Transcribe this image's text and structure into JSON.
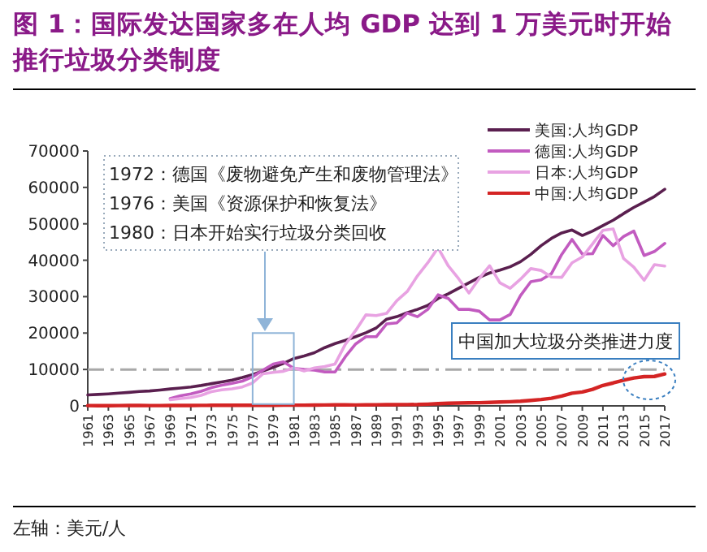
{
  "chart_data": {
    "type": "line",
    "title": "图 1：国际发达国家多在人均 GDP 达到 1 万美元时开始推行垃圾分类制度",
    "annotations": [
      "1972：德国《废物避免产生和废物管理法》",
      "1976：美国《资源保护和恢复法》",
      "1980：日本开始实行垃圾分类回收",
      "中国加大垃圾分类推进力度",
      "左轴：美元/人"
    ],
    "x": [
      1961,
      1962,
      1963,
      1964,
      1965,
      1966,
      1967,
      1968,
      1969,
      1970,
      1971,
      1972,
      1973,
      1974,
      1975,
      1976,
      1977,
      1978,
      1979,
      1980,
      1981,
      1982,
      1983,
      1984,
      1985,
      1986,
      1987,
      1988,
      1989,
      1990,
      1991,
      1992,
      1993,
      1994,
      1995,
      1996,
      1997,
      1998,
      1999,
      2000,
      2001,
      2002,
      2003,
      2004,
      2005,
      2006,
      2007,
      2008,
      2009,
      2010,
      2011,
      2012,
      2013,
      2014,
      2015,
      2016,
      2017
    ],
    "series": [
      {
        "name": "美国:人均GDP",
        "color": "#5a1f4f",
        "values": [
          3000,
          3150,
          3300,
          3500,
          3700,
          3950,
          4100,
          4350,
          4650,
          4900,
          5200,
          5600,
          6100,
          6600,
          7100,
          7800,
          8600,
          9600,
          10600,
          11700,
          13000,
          13700,
          14600,
          16000,
          17100,
          18000,
          19000,
          20100,
          21400,
          23800,
          24500,
          25600,
          26500,
          27600,
          29500,
          30800,
          32300,
          33800,
          35300,
          36500,
          37300,
          38200,
          39600,
          41600,
          44000,
          46000,
          47500,
          48300,
          46800,
          48000,
          49500,
          51000,
          52800,
          54500,
          56000,
          57500,
          59500
        ]
      },
      {
        "name": "德国:人均GDP",
        "color": "#c25bc0",
        "values": [
          null,
          null,
          null,
          null,
          null,
          null,
          null,
          null,
          2000,
          2800,
          3300,
          4000,
          5000,
          5700,
          6200,
          6800,
          8000,
          9800,
          11500,
          12100,
          10300,
          10000,
          9800,
          9300,
          9300,
          13500,
          17000,
          19000,
          19000,
          22500,
          22800,
          25500,
          24500,
          26500,
          30500,
          29500,
          26500,
          26500,
          26000,
          23600,
          23600,
          25100,
          30300,
          34100,
          34600,
          36300,
          41600,
          45700,
          41700,
          41800,
          46800,
          44000,
          46500,
          48000,
          41300,
          42400,
          44600
        ]
      },
      {
        "name": "日本:人均GDP",
        "color": "#e8a2e2",
        "values": [
          null,
          null,
          null,
          null,
          null,
          null,
          null,
          null,
          1700,
          2000,
          2300,
          2900,
          3900,
          4400,
          4700,
          5200,
          6300,
          8800,
          9200,
          9500,
          10400,
          9600,
          10400,
          10800,
          11500,
          16900,
          20700,
          25000,
          24800,
          25400,
          28900,
          31400,
          35700,
          39300,
          43400,
          38400,
          34900,
          31000,
          35000,
          38500,
          33800,
          32300,
          34800,
          37700,
          37200,
          35400,
          35300,
          39300,
          40900,
          44500,
          48200,
          48600,
          40500,
          38100,
          34500,
          38800,
          38400
        ]
      },
      {
        "name": "中国:人均GDP",
        "color": "#d42424",
        "values": [
          80,
          70,
          70,
          85,
          100,
          105,
          95,
          90,
          100,
          110,
          120,
          130,
          155,
          160,
          175,
          165,
          185,
          155,
          185,
          195,
          195,
          200,
          225,
          250,
          295,
          280,
          250,
          285,
          310,
          320,
          330,
          365,
          380,
          475,
          610,
          710,
          780,
          830,
          875,
          960,
          1050,
          1150,
          1290,
          1510,
          1750,
          2100,
          2700,
          3470,
          3830,
          4550,
          5620,
          6300,
          7050,
          7650,
          8030,
          8080,
          8760
        ]
      }
    ],
    "xlim": [
      1961,
      2017
    ],
    "xticks": [
      1961,
      1963,
      1965,
      1967,
      1969,
      1971,
      1973,
      1975,
      1977,
      1979,
      1981,
      1983,
      1985,
      1987,
      1989,
      1991,
      1993,
      1995,
      1997,
      1999,
      2001,
      2003,
      2005,
      2007,
      2009,
      2011,
      2013,
      2015,
      2017
    ],
    "ylim": [
      0,
      70000
    ],
    "yticks": [
      0,
      10000,
      20000,
      30000,
      40000,
      50000,
      60000,
      70000
    ],
    "ref_lines": [
      {
        "axis": "y",
        "value": 10000,
        "color": "#a8a8a8",
        "line_style": "dashed"
      }
    ],
    "legend": "top right",
    "grid": false
  }
}
